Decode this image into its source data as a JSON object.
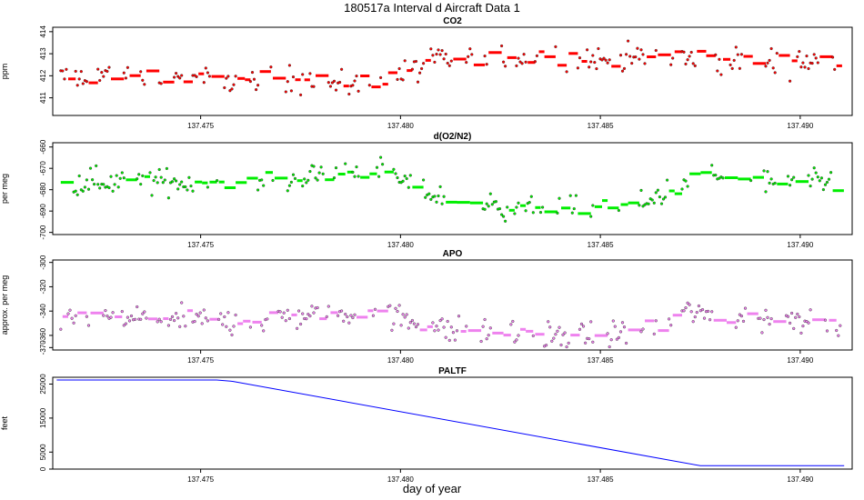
{
  "figure": {
    "title": "180517a   Interval d Aircraft Data 1",
    "xlabel": "day of year"
  },
  "chart_data": [
    {
      "type": "scatter",
      "title": "CO2",
      "ylabel": "ppm",
      "color": "#ff0000",
      "xlim": [
        137.4713,
        137.4913
      ],
      "ylim": [
        410.2,
        414.2
      ],
      "x_ticks": [
        "137.475",
        "137.480",
        "137.485",
        "137.490"
      ],
      "y_ticks": [
        "411",
        "412",
        "413",
        "414"
      ],
      "x_range": [
        137.4715,
        137.491
      ],
      "trend": [
        [
          137.4715,
          411.9
        ],
        [
          137.474,
          412.0
        ],
        [
          137.476,
          411.7
        ],
        [
          137.4778,
          411.9
        ],
        [
          137.4786,
          411.5
        ],
        [
          137.48,
          412.0
        ],
        [
          137.4808,
          412.6
        ],
        [
          137.4825,
          412.8
        ],
        [
          137.4838,
          412.9
        ],
        [
          137.4848,
          412.7
        ],
        [
          137.4865,
          412.9
        ],
        [
          137.488,
          412.6
        ],
        [
          137.4895,
          412.7
        ],
        [
          137.491,
          412.6
        ]
      ],
      "noise": 0.45,
      "n_points": 420
    },
    {
      "type": "scatter",
      "title": "d(O2/N2)",
      "ylabel": "per meg",
      "color": "#00ee00",
      "xlim": [
        137.4713,
        137.4913
      ],
      "ylim": [
        -701,
        -658
      ],
      "x_ticks": [
        "137.475",
        "137.480",
        "137.485",
        "137.490"
      ],
      "y_ticks": [
        "-660",
        "-670",
        "-680",
        "-690",
        "-700"
      ],
      "x_range": [
        137.4715,
        137.491
      ],
      "trend": [
        [
          137.4715,
          -676
        ],
        [
          137.474,
          -676
        ],
        [
          137.476,
          -678
        ],
        [
          137.478,
          -673
        ],
        [
          137.4795,
          -671
        ],
        [
          137.4805,
          -680
        ],
        [
          137.4812,
          -685
        ],
        [
          137.4825,
          -688
        ],
        [
          137.4845,
          -689
        ],
        [
          137.486,
          -687
        ],
        [
          137.4868,
          -680
        ],
        [
          137.4875,
          -673
        ],
        [
          137.489,
          -677
        ],
        [
          137.491,
          -677
        ]
      ],
      "noise": 4.2,
      "n_points": 420
    },
    {
      "type": "scatter",
      "title": "APO",
      "ylabel": "approx. per meg",
      "color": "#ee82ee",
      "xlim": [
        137.4713,
        137.4913
      ],
      "ylim": [
        -372,
        -298
      ],
      "x_ticks": [
        "137.475",
        "137.480",
        "137.485",
        "137.490"
      ],
      "y_ticks": [
        "-300",
        "-320",
        "-340",
        "-360",
        "-370"
      ],
      "x_range": [
        137.4715,
        137.491
      ],
      "trend": [
        [
          137.4715,
          -347
        ],
        [
          137.474,
          -346
        ],
        [
          137.476,
          -349
        ],
        [
          137.478,
          -342
        ],
        [
          137.4795,
          -340
        ],
        [
          137.4805,
          -350
        ],
        [
          137.4812,
          -356
        ],
        [
          137.483,
          -359
        ],
        [
          137.485,
          -360
        ],
        [
          137.4862,
          -356
        ],
        [
          137.4872,
          -340
        ],
        [
          137.488,
          -345
        ],
        [
          137.4895,
          -345
        ],
        [
          137.491,
          -347
        ]
      ],
      "noise": 8,
      "n_points": 420
    },
    {
      "type": "line",
      "title": "PALTF",
      "ylabel": "feet",
      "color": "#0000ff",
      "xlim": [
        137.4713,
        137.4913
      ],
      "ylim": [
        0,
        27000
      ],
      "x_ticks": [
        "137.475",
        "137.480",
        "137.485",
        "137.490"
      ],
      "y_ticks": [
        "0",
        "5000",
        "15000",
        "25000"
      ],
      "points": [
        [
          137.4714,
          26200
        ],
        [
          137.4754,
          26200
        ],
        [
          137.4758,
          25800
        ],
        [
          137.4875,
          1000
        ],
        [
          137.4911,
          1000
        ]
      ]
    }
  ]
}
